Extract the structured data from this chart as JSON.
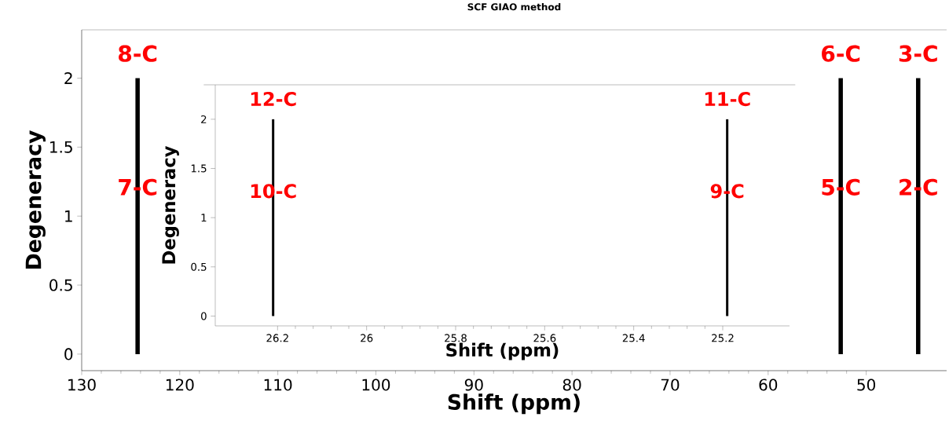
{
  "chart_data": [
    {
      "type": "bar",
      "title": "SCF  GIAO method",
      "xlabel": "Shift (ppm)",
      "ylabel": "Degeneracy",
      "x": [
        124.3,
        52.6,
        44.7
      ],
      "values": [
        2,
        2,
        2
      ],
      "color": "#000000",
      "xlim": [
        130,
        41.8
      ],
      "ylim": [
        -0.12,
        2.35
      ],
      "xticks": [
        130,
        120,
        110,
        100,
        90,
        80,
        70,
        60,
        50
      ],
      "yticks": [
        0,
        0.5,
        1,
        1.5,
        2
      ],
      "grid": false,
      "annotations": [
        {
          "text": "8-C",
          "x": 124.3,
          "y": 2
        },
        {
          "text": "7-C",
          "x": 124.3,
          "y": 1.21
        },
        {
          "text": "6-C",
          "x": 52.6,
          "y": 2
        },
        {
          "text": "5-C",
          "x": 52.6,
          "y": 1.21
        },
        {
          "text": "3-C",
          "x": 44.7,
          "y": 2
        },
        {
          "text": "2-C",
          "x": 44.7,
          "y": 1.21
        }
      ]
    },
    {
      "type": "bar",
      "xlabel": "Shift (ppm)",
      "ylabel": "Degeneracy",
      "x": [
        26.21,
        25.19
      ],
      "values": [
        2,
        2
      ],
      "color": "#000000",
      "xlim": [
        26.34,
        25.05
      ],
      "ylim": [
        -0.1,
        2.35
      ],
      "xticks": [
        26.2,
        26,
        25.8,
        25.6,
        25.4,
        25.2
      ],
      "yticks": [
        0,
        0.5,
        1,
        1.5,
        2
      ],
      "grid": false,
      "annotations": [
        {
          "text": "12-C",
          "x": 26.21,
          "y": 2
        },
        {
          "text": "10-C",
          "x": 26.21,
          "y": 1.27
        },
        {
          "text": "11-C",
          "x": 25.19,
          "y": 2
        },
        {
          "text": "9-C",
          "x": 25.19,
          "y": 1.27
        }
      ]
    }
  ]
}
